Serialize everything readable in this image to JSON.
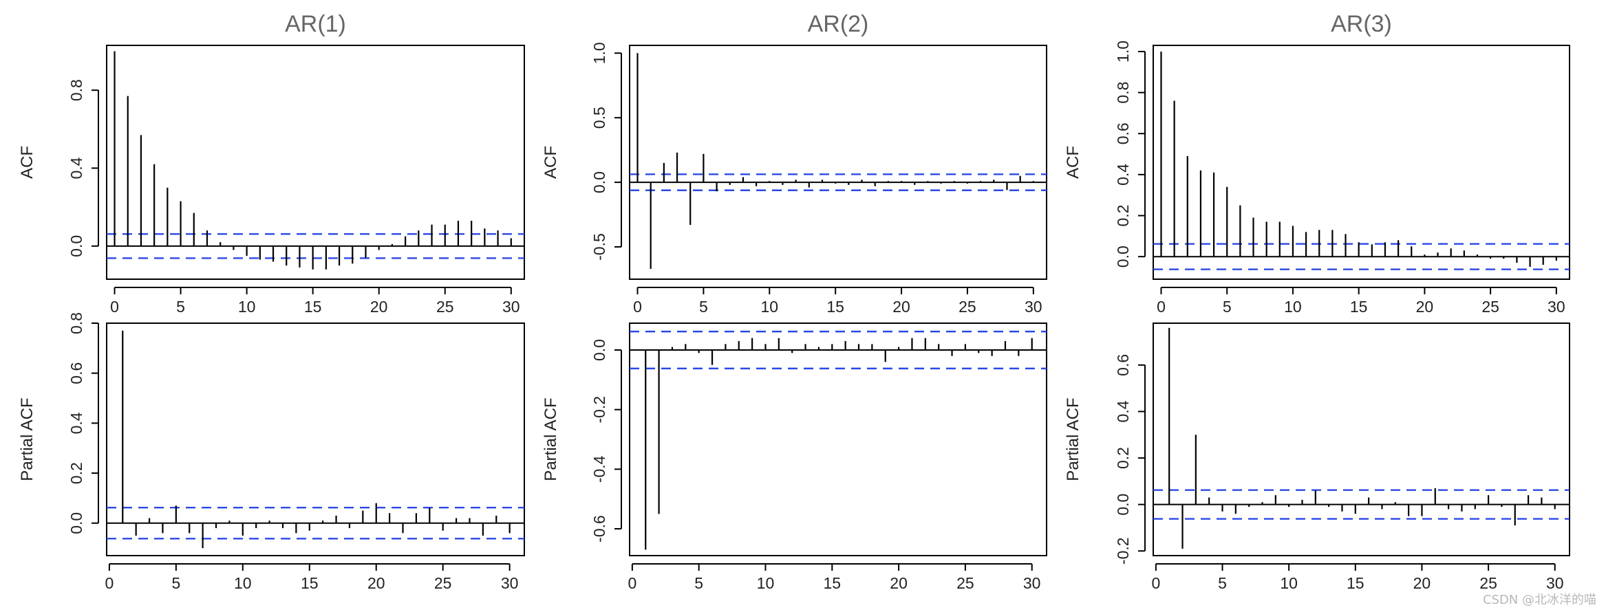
{
  "colors": {
    "bar": "#000000",
    "conf_band": "#2a48e6",
    "frame": "#000000"
  },
  "watermark": "CSDN @北冰洋的喵",
  "chart_data": [
    {
      "type": "bar",
      "panel": "acf-ar1",
      "title": "AR(1)",
      "ylabel": "ACF",
      "x_ticks": [
        0,
        5,
        10,
        15,
        20,
        25,
        30
      ],
      "y_ticks": [
        0.0,
        0.4,
        0.8
      ],
      "y_tick_labels": [
        "0.0",
        "0.4",
        "0.8"
      ],
      "xlim": [
        -0.6,
        31.0
      ],
      "ylim": [
        -0.17,
        1.03
      ],
      "conf_band": 0.062,
      "lags": [
        0,
        1,
        2,
        3,
        4,
        5,
        6,
        7,
        8,
        9,
        10,
        11,
        12,
        13,
        14,
        15,
        16,
        17,
        18,
        19,
        20,
        21,
        22,
        23,
        24,
        25,
        26,
        27,
        28,
        29,
        30
      ],
      "values": [
        1.0,
        0.77,
        0.57,
        0.42,
        0.3,
        0.23,
        0.17,
        0.08,
        0.02,
        -0.02,
        -0.05,
        -0.07,
        -0.08,
        -0.1,
        -0.11,
        -0.12,
        -0.12,
        -0.1,
        -0.09,
        -0.06,
        -0.02,
        0.01,
        0.05,
        0.08,
        0.11,
        0.11,
        0.13,
        0.13,
        0.09,
        0.08,
        0.04
      ]
    },
    {
      "type": "bar",
      "panel": "acf-ar2",
      "title": "AR(2)",
      "ylabel": "ACF",
      "x_ticks": [
        0,
        5,
        10,
        15,
        20,
        25,
        30
      ],
      "y_ticks": [
        -0.5,
        0.0,
        0.5,
        1.0
      ],
      "y_tick_labels": [
        "-0.5",
        "0.0",
        "0.5",
        "1.0"
      ],
      "xlim": [
        -0.6,
        31.0
      ],
      "ylim": [
        -0.75,
        1.06
      ],
      "conf_band": 0.062,
      "lags": [
        0,
        1,
        2,
        3,
        4,
        5,
        6,
        7,
        8,
        9,
        10,
        11,
        12,
        13,
        14,
        15,
        16,
        17,
        18,
        19,
        20,
        21,
        22,
        23,
        24,
        25,
        26,
        27,
        28,
        29,
        30
      ],
      "values": [
        1.0,
        -0.67,
        0.15,
        0.23,
        -0.33,
        0.22,
        -0.07,
        -0.02,
        0.04,
        -0.03,
        0.01,
        -0.02,
        0.02,
        -0.04,
        0.02,
        -0.01,
        -0.02,
        0.02,
        -0.03,
        0.01,
        0.01,
        -0.02,
        0.01,
        -0.01,
        0.01,
        -0.01,
        0.01,
        0.02,
        -0.06,
        0.05,
        0.01
      ]
    },
    {
      "type": "bar",
      "panel": "acf-ar3",
      "title": "AR(3)",
      "ylabel": "ACF",
      "x_ticks": [
        0,
        5,
        10,
        15,
        20,
        25,
        30
      ],
      "y_ticks": [
        0.0,
        0.2,
        0.4,
        0.6,
        0.8,
        1.0
      ],
      "y_tick_labels": [
        "0.0",
        "0.2",
        "0.4",
        "0.6",
        "0.8",
        "1.0"
      ],
      "xlim": [
        -0.6,
        31.0
      ],
      "ylim": [
        -0.11,
        1.03
      ],
      "conf_band": 0.062,
      "lags": [
        0,
        1,
        2,
        3,
        4,
        5,
        6,
        7,
        8,
        9,
        10,
        11,
        12,
        13,
        14,
        15,
        16,
        17,
        18,
        19,
        20,
        21,
        22,
        23,
        24,
        25,
        26,
        27,
        28,
        29,
        30
      ],
      "values": [
        1.0,
        0.76,
        0.49,
        0.42,
        0.41,
        0.34,
        0.25,
        0.19,
        0.17,
        0.17,
        0.15,
        0.12,
        0.13,
        0.13,
        0.11,
        0.07,
        0.06,
        0.07,
        0.08,
        0.05,
        0.01,
        0.02,
        0.04,
        0.03,
        0.01,
        -0.01,
        -0.01,
        -0.03,
        -0.05,
        -0.04,
        -0.02
      ]
    },
    {
      "type": "bar",
      "panel": "pacf-ar1",
      "ylabel": "Partial ACF",
      "x_ticks": [
        0,
        5,
        10,
        15,
        20,
        25,
        30
      ],
      "y_ticks": [
        0.0,
        0.2,
        0.4,
        0.6,
        0.8
      ],
      "y_tick_labels": [
        "0.0",
        "0.2",
        "0.4",
        "0.6",
        "0.8"
      ],
      "xlim": [
        -0.2,
        31.1
      ],
      "ylim": [
        -0.13,
        0.8
      ],
      "conf_band": 0.062,
      "lags": [
        1,
        2,
        3,
        4,
        5,
        6,
        7,
        8,
        9,
        10,
        11,
        12,
        13,
        14,
        15,
        16,
        17,
        18,
        19,
        20,
        21,
        22,
        23,
        24,
        25,
        26,
        27,
        28,
        29,
        30
      ],
      "values": [
        0.77,
        -0.05,
        0.02,
        -0.04,
        0.07,
        -0.04,
        -0.1,
        -0.02,
        0.01,
        -0.05,
        -0.02,
        0.01,
        -0.02,
        -0.04,
        -0.03,
        0.01,
        0.03,
        -0.02,
        0.05,
        0.08,
        0.04,
        -0.04,
        0.04,
        0.06,
        -0.03,
        0.02,
        0.02,
        -0.05,
        0.03,
        -0.04
      ]
    },
    {
      "type": "bar",
      "panel": "pacf-ar2",
      "ylabel": "Partial ACF",
      "x_ticks": [
        0,
        5,
        10,
        15,
        20,
        25,
        30
      ],
      "y_ticks": [
        -0.6,
        -0.4,
        -0.2,
        0.0
      ],
      "y_tick_labels": [
        "-0.6",
        "-0.4",
        "-0.2",
        "0.0"
      ],
      "xlim": [
        -0.2,
        31.1
      ],
      "ylim": [
        -0.69,
        0.09
      ],
      "conf_band": 0.062,
      "lags": [
        1,
        2,
        3,
        4,
        5,
        6,
        7,
        8,
        9,
        10,
        11,
        12,
        13,
        14,
        15,
        16,
        17,
        18,
        19,
        20,
        21,
        22,
        23,
        24,
        25,
        26,
        27,
        28,
        29,
        30
      ],
      "values": [
        -0.67,
        -0.55,
        0.01,
        0.02,
        -0.01,
        -0.05,
        0.02,
        0.03,
        0.04,
        0.02,
        0.04,
        -0.01,
        0.02,
        0.01,
        0.02,
        0.03,
        0.02,
        0.02,
        -0.04,
        0.01,
        0.04,
        0.04,
        0.02,
        -0.02,
        0.02,
        -0.01,
        -0.02,
        0.03,
        -0.02,
        0.04
      ]
    },
    {
      "type": "bar",
      "panel": "pacf-ar3",
      "ylabel": "Partial ACF",
      "x_ticks": [
        0,
        5,
        10,
        15,
        20,
        25,
        30
      ],
      "y_ticks": [
        -0.2,
        0.0,
        0.2,
        0.4,
        0.6
      ],
      "y_tick_labels": [
        "-0.2",
        "0.0",
        "0.2",
        "0.4",
        "0.6"
      ],
      "xlim": [
        -0.2,
        31.1
      ],
      "ylim": [
        -0.22,
        0.78
      ],
      "conf_band": 0.062,
      "lags": [
        1,
        2,
        3,
        4,
        5,
        6,
        7,
        8,
        9,
        10,
        11,
        12,
        13,
        14,
        15,
        16,
        17,
        18,
        19,
        20,
        21,
        22,
        23,
        24,
        25,
        26,
        27,
        28,
        29,
        30
      ],
      "values": [
        0.76,
        -0.19,
        0.3,
        0.03,
        -0.03,
        -0.04,
        -0.01,
        0.01,
        0.04,
        -0.01,
        0.02,
        0.06,
        -0.01,
        -0.03,
        -0.04,
        0.03,
        -0.02,
        0.01,
        -0.05,
        -0.05,
        0.07,
        -0.02,
        -0.03,
        -0.02,
        0.04,
        -0.01,
        -0.09,
        0.04,
        0.03,
        -0.02
      ]
    }
  ]
}
